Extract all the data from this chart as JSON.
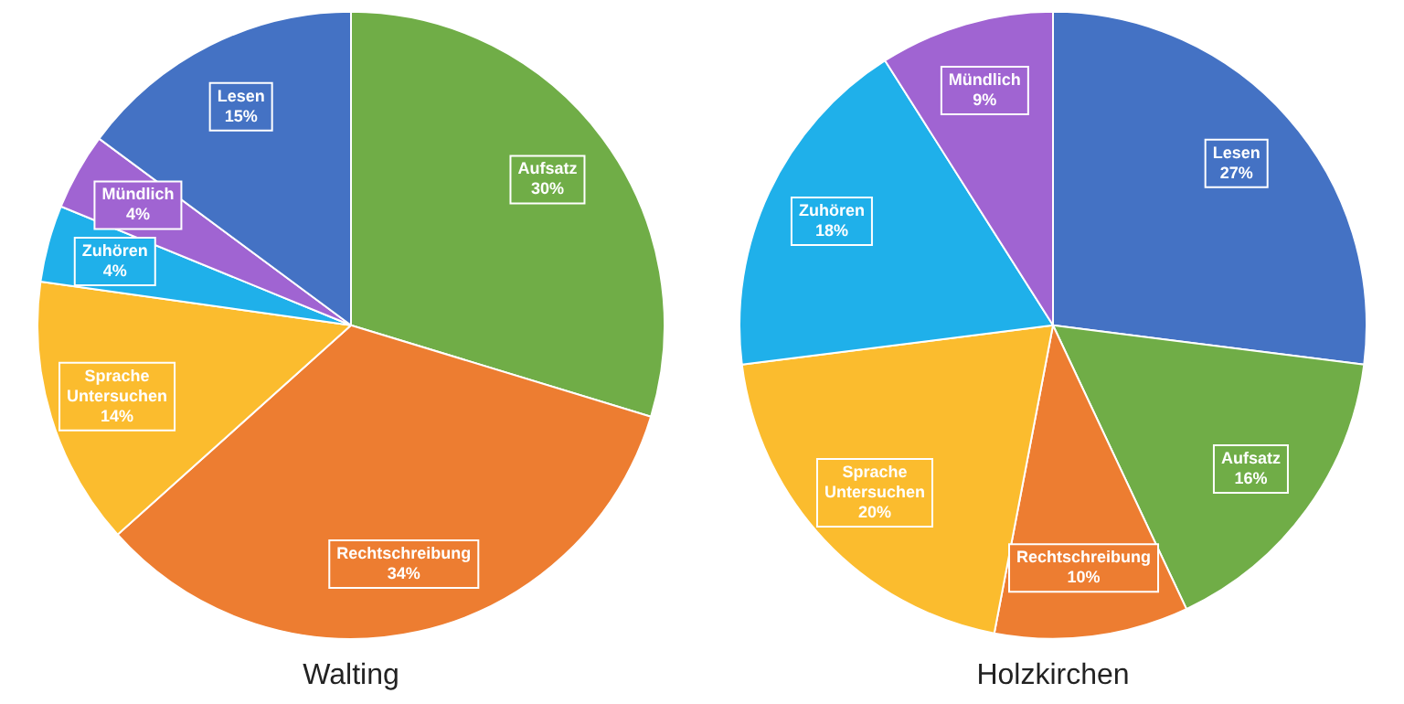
{
  "chart_data": [
    {
      "type": "pie",
      "title": "Walting",
      "categories": [
        "Aufsatz",
        "Rechtschreibung",
        "Sprache Untersuchen",
        "Zuhören",
        "Mündlich",
        "Lesen"
      ],
      "values": [
        30,
        34,
        14,
        4,
        4,
        15
      ],
      "value_labels": [
        "30%",
        "34%",
        "14%",
        "4%",
        "4%",
        "15%"
      ],
      "colors": [
        "#70ad47",
        "#ed7d31",
        "#fbbc2e",
        "#1fb0ea",
        "#a064d2",
        "#4472c4"
      ],
      "legend": false
    },
    {
      "type": "pie",
      "title": "Holzkirchen",
      "categories": [
        "Lesen",
        "Aufsatz",
        "Rechtschreibung",
        "Sprache Untersuchen",
        "Zuhören",
        "Mündlich"
      ],
      "values": [
        27,
        16,
        10,
        20,
        18,
        9
      ],
      "value_labels": [
        "27%",
        "16%",
        "10%",
        "20%",
        "18%",
        "9%"
      ],
      "colors": [
        "#4472c4",
        "#70ad47",
        "#ed7d31",
        "#fbbc2e",
        "#1fb0ea",
        "#a064d2"
      ],
      "legend": false
    }
  ]
}
